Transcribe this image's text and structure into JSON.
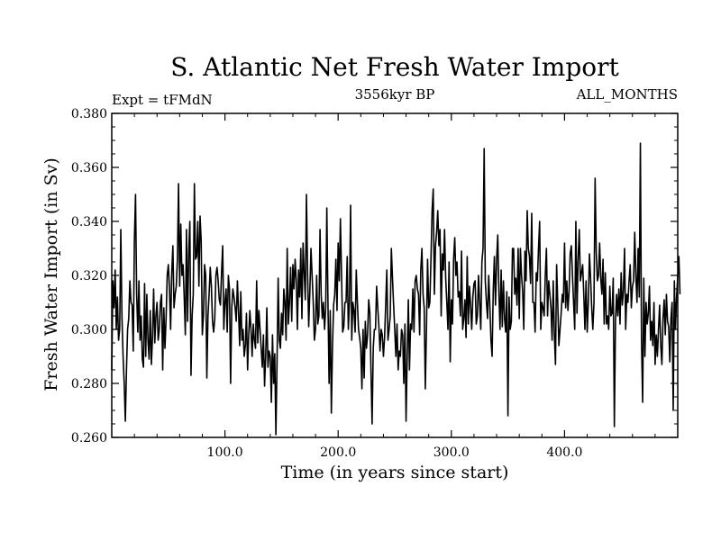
{
  "chart_data": {
    "type": "line",
    "title": "S. Atlantic Net Fresh Water Import",
    "subtitle_left": "Expt = tFMdN",
    "subtitle_center": "3556kyr BP",
    "subtitle_right": "ALL_MONTHS",
    "xlabel": "Time (in years since start)",
    "ylabel": "Fresh Water Import (in Sv)",
    "xlim": [
      0,
      500
    ],
    "ylim": [
      0.26,
      0.38
    ],
    "x_ticks": [
      100,
      200,
      300,
      400
    ],
    "x_tick_labels": [
      "100.0",
      "200.0",
      "300.0",
      "400.0"
    ],
    "y_ticks": [
      0.26,
      0.28,
      0.3,
      0.32,
      0.34,
      0.36,
      0.38
    ],
    "y_tick_labels": [
      "0.260",
      "0.280",
      "0.300",
      "0.320",
      "0.340",
      "0.360",
      "0.380"
    ],
    "grid": false,
    "series": [
      {
        "name": "Net Fresh Water Import",
        "x_start": 0,
        "x_step": 1,
        "values": [
          0.285,
          0.318,
          0.308,
          0.322,
          0.3,
          0.312,
          0.296,
          0.3,
          0.337,
          0.305,
          0.29,
          0.28,
          0.266,
          0.285,
          0.3,
          0.304,
          0.318,
          0.31,
          0.309,
          0.292,
          0.333,
          0.35,
          0.313,
          0.299,
          0.318,
          0.296,
          0.305,
          0.289,
          0.286,
          0.317,
          0.29,
          0.313,
          0.296,
          0.289,
          0.307,
          0.287,
          0.297,
          0.315,
          0.295,
          0.305,
          0.31,
          0.296,
          0.3,
          0.31,
          0.313,
          0.285,
          0.308,
          0.293,
          0.304,
          0.32,
          0.324,
          0.315,
          0.3,
          0.321,
          0.331,
          0.308,
          0.313,
          0.316,
          0.326,
          0.354,
          0.316,
          0.339,
          0.32,
          0.324,
          0.312,
          0.298,
          0.337,
          0.303,
          0.329,
          0.34,
          0.283,
          0.305,
          0.313,
          0.354,
          0.326,
          0.327,
          0.34,
          0.316,
          0.342,
          0.333,
          0.298,
          0.305,
          0.324,
          0.32,
          0.282,
          0.305,
          0.313,
          0.323,
          0.316,
          0.303,
          0.299,
          0.304,
          0.32,
          0.323,
          0.318,
          0.311,
          0.309,
          0.321,
          0.331,
          0.3,
          0.31,
          0.315,
          0.299,
          0.32,
          0.315,
          0.28,
          0.308,
          0.315,
          0.312,
          0.308,
          0.303,
          0.318,
          0.307,
          0.294,
          0.314,
          0.296,
          0.3,
          0.29,
          0.294,
          0.306,
          0.285,
          0.298,
          0.307,
          0.3,
          0.29,
          0.302,
          0.296,
          0.293,
          0.318,
          0.295,
          0.307,
          0.3,
          0.293,
          0.286,
          0.298,
          0.279,
          0.29,
          0.308,
          0.286,
          0.292,
          0.29,
          0.273,
          0.298,
          0.28,
          0.291,
          0.261,
          0.288,
          0.319,
          0.296,
          0.293,
          0.306,
          0.298,
          0.315,
          0.31,
          0.296,
          0.33,
          0.302,
          0.31,
          0.323,
          0.303,
          0.324,
          0.315,
          0.326,
          0.318,
          0.3,
          0.322,
          0.312,
          0.33,
          0.304,
          0.332,
          0.321,
          0.311,
          0.35,
          0.321,
          0.301,
          0.314,
          0.33,
          0.32,
          0.31,
          0.296,
          0.3,
          0.32,
          0.302,
          0.305,
          0.337,
          0.313,
          0.304,
          0.31,
          0.3,
          0.308,
          0.345,
          0.31,
          0.28,
          0.307,
          0.269,
          0.294,
          0.309,
          0.313,
          0.326,
          0.307,
          0.332,
          0.318,
          0.341,
          0.32,
          0.299,
          0.301,
          0.31,
          0.31,
          0.327,
          0.3,
          0.31,
          0.346,
          0.296,
          0.31,
          0.307,
          0.299,
          0.322,
          0.31,
          0.3,
          0.297,
          0.293,
          0.278,
          0.3,
          0.282,
          0.303,
          0.293,
          0.298,
          0.311,
          0.306,
          0.285,
          0.265,
          0.293,
          0.3,
          0.3,
          0.316,
          0.308,
          0.301,
          0.292,
          0.3,
          0.298,
          0.29,
          0.297,
          0.309,
          0.322,
          0.296,
          0.3,
          0.305,
          0.33,
          0.319,
          0.309,
          0.3,
          0.29,
          0.302,
          0.285,
          0.292,
          0.29,
          0.3,
          0.298,
          0.28,
          0.302,
          0.266,
          0.29,
          0.311,
          0.285,
          0.302,
          0.3,
          0.315,
          0.299,
          0.318,
          0.32,
          0.315,
          0.313,
          0.298,
          0.322,
          0.33,
          0.313,
          0.308,
          0.278,
          0.3,
          0.326,
          0.308,
          0.31,
          0.326,
          0.344,
          0.352,
          0.313,
          0.331,
          0.336,
          0.344,
          0.331,
          0.337,
          0.305,
          0.328,
          0.322,
          0.337,
          0.319,
          0.31,
          0.3,
          0.325,
          0.288,
          0.311,
          0.302,
          0.326,
          0.334,
          0.32,
          0.325,
          0.312,
          0.314,
          0.305,
          0.329,
          0.3,
          0.304,
          0.311,
          0.297,
          0.327,
          0.302,
          0.316,
          0.309,
          0.3,
          0.312,
          0.317,
          0.318,
          0.302,
          0.305,
          0.32,
          0.31,
          0.3,
          0.325,
          0.33,
          0.367,
          0.318,
          0.31,
          0.304,
          0.32,
          0.309,
          0.296,
          0.29,
          0.314,
          0.327,
          0.309,
          0.326,
          0.335,
          0.314,
          0.3,
          0.322,
          0.301,
          0.318,
          0.304,
          0.299,
          0.314,
          0.268,
          0.312,
          0.3,
          0.303,
          0.33,
          0.33,
          0.313,
          0.319,
          0.309,
          0.33,
          0.304,
          0.33,
          0.32,
          0.314,
          0.3,
          0.329,
          0.318,
          0.344,
          0.33,
          0.327,
          0.317,
          0.343,
          0.31,
          0.31,
          0.299,
          0.321,
          0.318,
          0.33,
          0.34,
          0.3,
          0.31,
          0.308,
          0.305,
          0.32,
          0.33,
          0.305,
          0.318,
          0.313,
          0.308,
          0.296,
          0.318,
          0.298,
          0.287,
          0.324,
          0.31,
          0.294,
          0.3,
          0.306,
          0.313,
          0.31,
          0.332,
          0.308,
          0.318,
          0.307,
          0.314,
          0.328,
          0.331,
          0.32,
          0.31,
          0.3,
          0.34,
          0.306,
          0.326,
          0.337,
          0.318,
          0.321,
          0.324,
          0.313,
          0.3,
          0.318,
          0.299,
          0.31,
          0.328,
          0.319,
          0.308,
          0.3,
          0.31,
          0.356,
          0.329,
          0.318,
          0.32,
          0.332,
          0.319,
          0.313,
          0.326,
          0.302,
          0.321,
          0.302,
          0.305,
          0.3,
          0.316,
          0.305,
          0.306,
          0.319,
          0.264,
          0.303,
          0.313,
          0.305,
          0.315,
          0.302,
          0.321,
          0.309,
          0.314,
          0.33,
          0.3,
          0.313,
          0.31,
          0.318,
          0.324,
          0.308,
          0.316,
          0.318,
          0.336,
          0.32,
          0.31,
          0.33,
          0.312,
          0.369,
          0.296,
          0.273,
          0.319,
          0.29,
          0.31,
          0.302,
          0.306,
          0.316,
          0.296,
          0.303,
          0.294,
          0.31,
          0.287,
          0.298,
          0.29,
          0.3,
          0.309,
          0.294,
          0.287,
          0.304,
          0.311,
          0.298,
          0.313,
          0.303,
          0.301,
          0.288,
          0.304,
          0.31,
          0.27,
          0.318,
          0.3,
          0.312,
          0.32,
          0.327,
          0.313
        ]
      }
    ]
  }
}
